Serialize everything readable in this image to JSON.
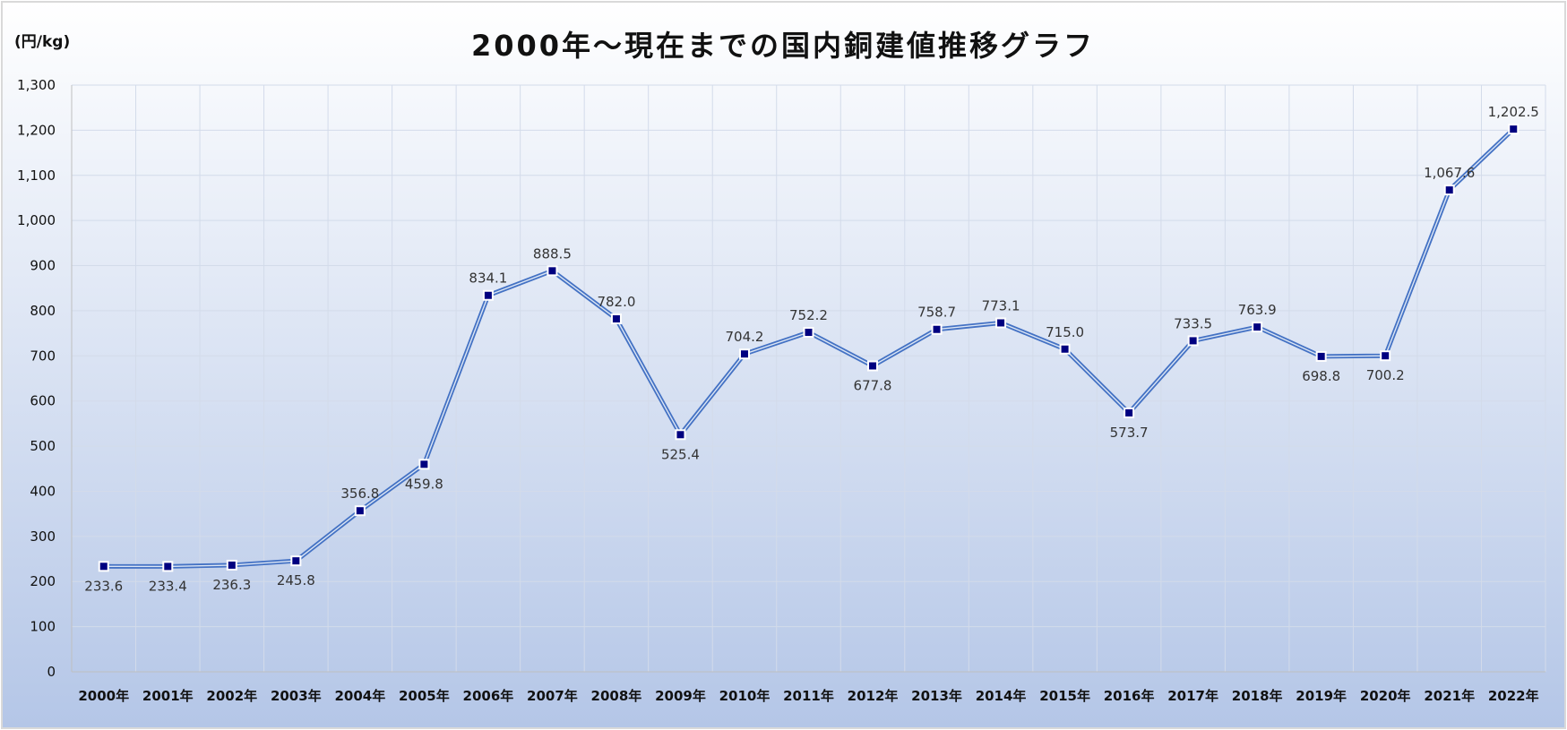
{
  "chart_data": {
    "type": "line",
    "title": "2000年～現在までの国内銅建値推移グラフ",
    "ylabel": "(円/kg)",
    "xlabel": "",
    "ylim": [
      0,
      1300
    ],
    "ytick_step": 100,
    "ytick_labels": [
      "0",
      "100",
      "200",
      "300",
      "400",
      "500",
      "600",
      "700",
      "800",
      "900",
      "1,000",
      "1,100",
      "1,200",
      "1,300"
    ],
    "categories": [
      "2000年",
      "2001年",
      "2002年",
      "2003年",
      "2004年",
      "2005年",
      "2006年",
      "2007年",
      "2008年",
      "2009年",
      "2010年",
      "2011年",
      "2012年",
      "2013年",
      "2014年",
      "2015年",
      "2016年",
      "2017年",
      "2018年",
      "2019年",
      "2020年",
      "2021年",
      "2022年"
    ],
    "values": [
      233.6,
      233.4,
      236.3,
      245.8,
      356.8,
      459.8,
      834.1,
      888.5,
      782.0,
      525.4,
      704.2,
      752.2,
      677.8,
      758.7,
      773.1,
      715.0,
      573.7,
      733.5,
      763.9,
      698.8,
      700.2,
      1067.6,
      1202.5
    ],
    "value_labels": [
      "233.6",
      "233.4",
      "236.3",
      "245.8",
      "356.8",
      "459.8",
      "834.1",
      "888.5",
      "782.0",
      "525.4",
      "704.2",
      "752.2",
      "677.8",
      "758.7",
      "773.1",
      "715.0",
      "573.7",
      "733.5",
      "763.9",
      "698.8",
      "700.2",
      "1,067.6",
      "1,202.5"
    ],
    "label_position": [
      "below",
      "below",
      "below",
      "below",
      "above",
      "below",
      "above",
      "above",
      "above",
      "below",
      "above",
      "above",
      "below",
      "above",
      "above",
      "above",
      "below",
      "above",
      "above",
      "below",
      "below",
      "above",
      "above"
    ],
    "grid": true,
    "legend": "none",
    "colors": {
      "line": "#4472c4",
      "line_inner": "#dce6f5",
      "marker": "#000080",
      "marker_border": "#ffffff",
      "grid": "#d3dbea",
      "bg_top": "#ffffff",
      "bg_bottom": "#b4c6e7",
      "frame": "#d9d9d9"
    }
  }
}
